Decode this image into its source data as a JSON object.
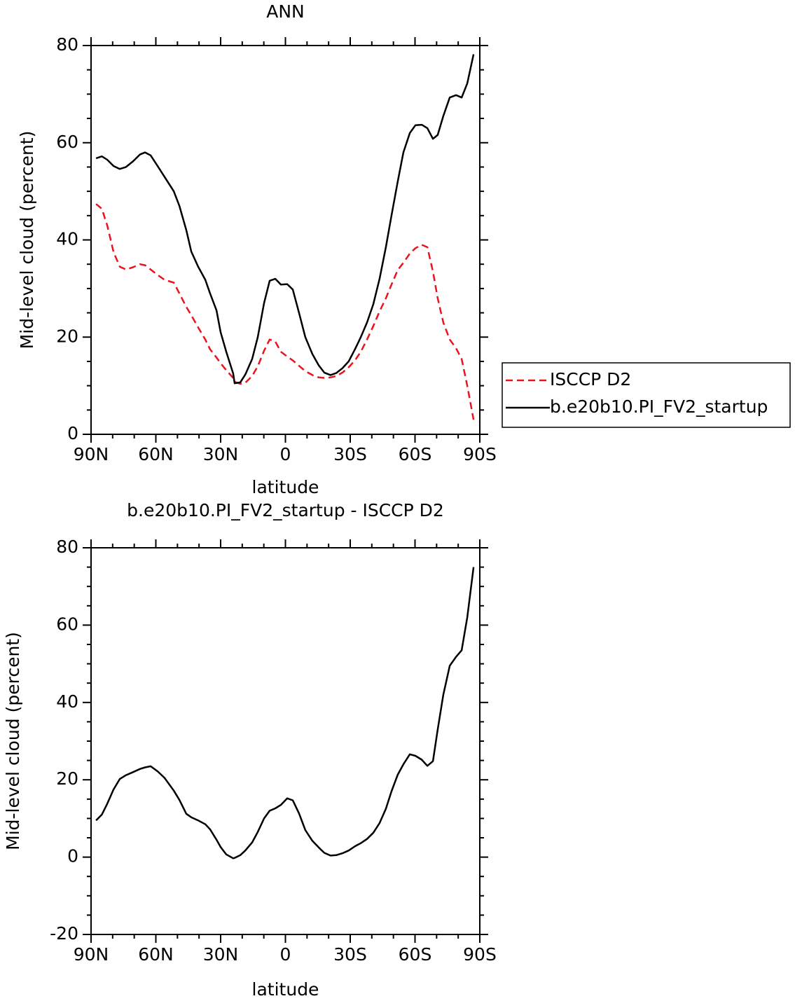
{
  "chart_data": [
    {
      "type": "line",
      "title": "ANN",
      "xlabel": "latitude",
      "ylabel": "Mid-level cloud (percent)",
      "xlim": [
        90,
        -90
      ],
      "xticks": [
        {
          "value": 90,
          "label": "90N"
        },
        {
          "value": 60,
          "label": "60N"
        },
        {
          "value": 30,
          "label": "30N"
        },
        0,
        {
          "value": -30,
          "label": "30S"
        },
        {
          "value": -60,
          "label": "60S"
        },
        {
          "value": -90,
          "label": "90S"
        }
      ],
      "xminorticks": [
        80,
        70,
        50,
        40,
        20,
        10,
        -10,
        -20,
        -40,
        -50,
        -70,
        -80
      ],
      "ylim": [
        0,
        80
      ],
      "yticks": [
        0,
        20,
        40,
        60,
        80
      ],
      "yminorticks": [
        5,
        10,
        15,
        25,
        30,
        35,
        45,
        50,
        55,
        65,
        70,
        75
      ],
      "legend": "right",
      "x": [
        87.7,
        85,
        82.5,
        79.6,
        76.7,
        73.8,
        70.5,
        67.3,
        65,
        62.4,
        59.2,
        56,
        51.7,
        49.1,
        45.9,
        43.6,
        40.4,
        37.1,
        34.9,
        31.9,
        30,
        27.4,
        24.2,
        23.5,
        20.9,
        18.6,
        15.4,
        12.8,
        9.9,
        7.3,
        4.7,
        2.1,
        -0.8,
        -3.4,
        -6.3,
        -9.2,
        -12.5,
        -15.4,
        -18,
        -20.9,
        -23.5,
        -26.4,
        -29.3,
        -32.2,
        -34.9,
        -37.8,
        -40.7,
        -43.6,
        -46.5,
        -49.1,
        -52,
        -54.6,
        -57.6,
        -60.2,
        -63.1,
        -65.7,
        -68.3,
        -70.5,
        -73.1,
        -76.1,
        -79,
        -81.6,
        -84.2,
        -87.1
      ],
      "series": [
        {
          "name": "ISCCP D2",
          "color": "#e8141e",
          "style": "dashed",
          "values": [
            47.4,
            46.4,
            43,
            37.5,
            34.5,
            33.9,
            34.4,
            35,
            34.8,
            33.9,
            32.8,
            31.8,
            31.2,
            29,
            26.2,
            24.5,
            22,
            19.5,
            17.5,
            15.8,
            14.6,
            13.2,
            11.6,
            10.8,
            10.4,
            10.6,
            12,
            14,
            17.2,
            19.5,
            19.1,
            17,
            16,
            15.2,
            14.1,
            13,
            12.2,
            11.7,
            11.6,
            11.7,
            12,
            12.7,
            13.8,
            15.2,
            17,
            19.5,
            22.3,
            25.3,
            28,
            30.8,
            33.8,
            35.3,
            37.2,
            38.3,
            39,
            38.5,
            33.5,
            28,
            23,
            19.5,
            17.7,
            15.5,
            10,
            3
          ]
        },
        {
          "name": "b.e20b10.PI_FV2_startup",
          "color": "#000000",
          "style": "solid",
          "values": [
            56.8,
            57.2,
            56.5,
            55.2,
            54.6,
            55,
            56.2,
            57.6,
            58,
            57.4,
            55.2,
            53,
            50,
            47,
            42,
            37.6,
            34.5,
            31.8,
            29,
            25.5,
            21,
            17,
            12.5,
            10.5,
            10.7,
            12.3,
            15.5,
            20,
            27,
            31.6,
            32,
            30.8,
            30.9,
            29.8,
            25,
            20,
            16.5,
            14.2,
            12.7,
            12.2,
            12.6,
            13.6,
            15,
            17.5,
            20,
            23,
            26.8,
            32,
            38.5,
            45,
            52,
            58,
            62,
            63.6,
            63.7,
            63,
            60.8,
            61.6,
            65.5,
            69.3,
            69.8,
            69.3,
            72.2,
            78.2
          ]
        }
      ]
    },
    {
      "type": "line",
      "title": "b.e20b10.PI_FV2_startup - ISCCP D2",
      "xlabel": "latitude",
      "ylabel": "Mid-level cloud (percent)",
      "xlim": [
        90,
        -90
      ],
      "xticks": [
        {
          "value": 90,
          "label": "90N"
        },
        {
          "value": 60,
          "label": "60N"
        },
        {
          "value": 30,
          "label": "30N"
        },
        0,
        {
          "value": -30,
          "label": "30S"
        },
        {
          "value": -60,
          "label": "60S"
        },
        {
          "value": -90,
          "label": "90S"
        }
      ],
      "xminorticks": [
        80,
        70,
        50,
        40,
        20,
        10,
        -10,
        -20,
        -40,
        -50,
        -70,
        -80
      ],
      "ylim": [
        -20,
        80
      ],
      "yticks": [
        -20,
        0,
        20,
        40,
        60,
        80
      ],
      "yminorticks": [
        -15,
        -10,
        -5,
        5,
        10,
        15,
        25,
        30,
        35,
        45,
        50,
        55,
        65,
        70,
        75
      ],
      "x": [
        87.7,
        85,
        82.5,
        79.6,
        76.7,
        73.8,
        70.5,
        67.3,
        65,
        62.4,
        59.2,
        56,
        51.7,
        49.1,
        45.9,
        43.6,
        40.4,
        37.1,
        34.9,
        31.9,
        30,
        27.4,
        24.2,
        23.5,
        20.9,
        18.6,
        15.4,
        12.8,
        9.9,
        7.3,
        4.7,
        2.1,
        -0.8,
        -3.4,
        -6.3,
        -9.2,
        -12.5,
        -15.4,
        -18,
        -20.9,
        -23.5,
        -26.4,
        -29.3,
        -32.2,
        -34.9,
        -37.8,
        -40.7,
        -43.6,
        -46.5,
        -49.1,
        -52,
        -54.6,
        -57.6,
        -60.2,
        -63.1,
        -65.7,
        -68.3,
        -70.5,
        -73.1,
        -76.1,
        -79,
        -81.6,
        -84.2,
        -87.1
      ],
      "series": [
        {
          "color": "#000000",
          "style": "solid",
          "values": [
            9.5,
            11,
            13.8,
            17.5,
            20.2,
            21.2,
            22,
            22.8,
            23.2,
            23.5,
            22.2,
            20.5,
            17.2,
            14.8,
            11.2,
            10.3,
            9.5,
            8.5,
            7.2,
            4.5,
            2.6,
            0.7,
            -0.3,
            -0.2,
            0.5,
            1.7,
            3.8,
            6.5,
            10,
            12,
            12.6,
            13.5,
            15.2,
            14.7,
            11.3,
            7,
            4.2,
            2.5,
            1.1,
            0.4,
            0.5,
            1,
            1.7,
            2.8,
            3.6,
            4.7,
            6.3,
            8.8,
            12.5,
            17,
            21.3,
            24,
            26.6,
            26.2,
            25.2,
            23.6,
            24.8,
            33,
            42,
            49.5,
            51.8,
            53.5,
            62,
            75
          ]
        }
      ]
    }
  ]
}
